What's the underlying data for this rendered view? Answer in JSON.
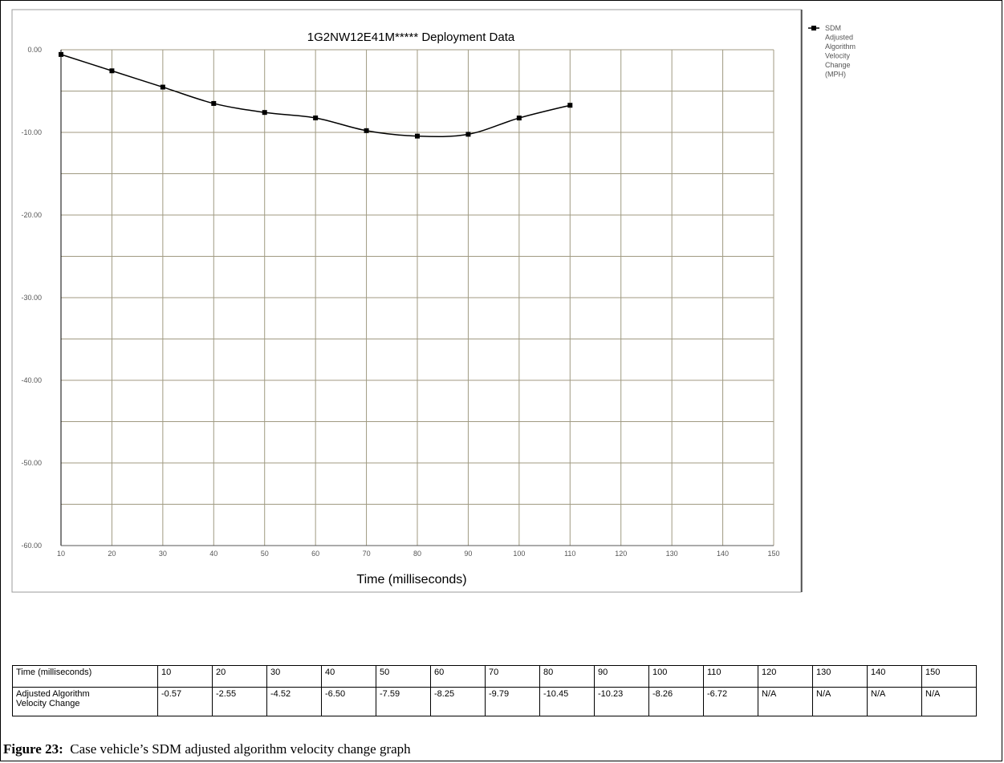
{
  "chart_data": {
    "type": "line",
    "title": "1G2NW12E41M***** Deployment Data",
    "xlabel": "Time (milliseconds)",
    "ylabel": "",
    "xlim": [
      10,
      150
    ],
    "ylim": [
      -60,
      0
    ],
    "x_ticks": [
      10,
      20,
      30,
      40,
      50,
      60,
      70,
      80,
      90,
      100,
      110,
      120,
      130,
      140,
      150
    ],
    "x_tick_labels": [
      "10",
      "20",
      "30",
      "40",
      "50",
      "60",
      "70",
      "80",
      "90",
      "100",
      "110",
      "120",
      "130",
      "140",
      "150"
    ],
    "y_ticks": [
      0,
      -10,
      -20,
      -30,
      -40,
      -50,
      -60
    ],
    "y_tick_labels": [
      "0.00",
      "-10.00",
      "-20.00",
      "-30.00",
      "-40.00",
      "-50.00",
      "-60.00"
    ],
    "grid": true,
    "legend_position": "right",
    "series": [
      {
        "name": "SDM Adjusted Algorithm Velocity Change (MPH)",
        "x": [
          10,
          20,
          30,
          40,
          50,
          60,
          70,
          80,
          90,
          100,
          110
        ],
        "values": [
          -0.57,
          -2.55,
          -4.52,
          -6.5,
          -7.59,
          -8.25,
          -9.79,
          -10.45,
          -10.23,
          -8.26,
          -6.72
        ],
        "color": "#000000"
      }
    ],
    "legend_lines": [
      "SDM",
      "Adjusted",
      "Algorithm",
      "Velocity",
      "Change",
      "(MPH)"
    ],
    "grid_color": "#a09a82"
  },
  "table": {
    "rows": [
      {
        "header": "Time (milliseconds)",
        "cells": [
          "10",
          "20",
          "30",
          "40",
          "50",
          "60",
          "70",
          "80",
          "90",
          "100",
          "110",
          "120",
          "130",
          "140",
          "150"
        ]
      },
      {
        "header_lines": [
          "Adjusted Algorithm",
          "Velocity Change"
        ],
        "cells": [
          "-0.57",
          "-2.55",
          "-4.52",
          "-6.50",
          "-7.59",
          "-8.25",
          "-9.79",
          "-10.45",
          "-10.23",
          "-8.26",
          "-6.72",
          "N/A",
          "N/A",
          "N/A",
          "N/A"
        ]
      }
    ]
  },
  "caption": {
    "label": "Figure 23:",
    "text": "Case vehicle’s SDM adjusted algorithm velocity change graph"
  }
}
